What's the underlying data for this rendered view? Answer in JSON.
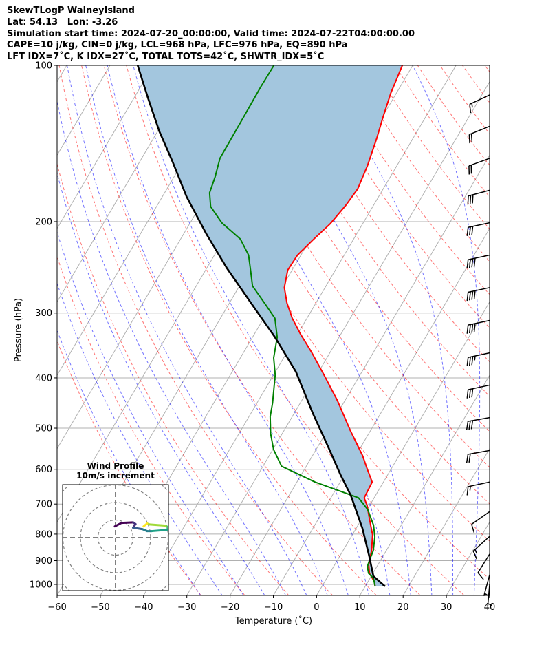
{
  "chart_data": {
    "type": "line",
    "title_lines": [
      "SkewTLogP WalneyIsland",
      "Lat: 54.13   Lon: -3.26",
      "Simulation start time: 2024-07-20_00:00:00, Valid time: 2024-07-22T04:00:00.00",
      "CAPE=10 j/kg, CIN=0 j/kg, LCL=968 hPa, LFC=976 hPa, EQ=890 hPa",
      "LFT IDX=7˚C, K IDX=27˚C, TOTAL TOTS=42˚C, SHWTR_IDX=5˚C"
    ],
    "xlabel": "Temperature (˚C)",
    "ylabel": "Pressure (hPa)",
    "xlim": [
      -60,
      40
    ],
    "ylim": [
      1050,
      100
    ],
    "xticks": [
      "−60",
      "−50",
      "−40",
      "−30",
      "−20",
      "−10",
      "0",
      "10",
      "20",
      "30",
      "40"
    ],
    "xtick_values": [
      -60,
      -50,
      -40,
      -30,
      -20,
      -10,
      0,
      10,
      20,
      30,
      40
    ],
    "yticks": [
      "100",
      "200",
      "300",
      "400",
      "500",
      "600",
      "700",
      "800",
      "900",
      "1000"
    ],
    "ytick_values": [
      100,
      200,
      300,
      400,
      500,
      600,
      700,
      800,
      900,
      1000
    ],
    "grid": true,
    "temperature": {
      "color": "#ff0000",
      "p": [
        100,
        113,
        126,
        138,
        156,
        173,
        186,
        202,
        217,
        232,
        248,
        268,
        287,
        307,
        329,
        357,
        393,
        442,
        505,
        565,
        597,
        635,
        681,
        706,
        746,
        803,
        861,
        915,
        952,
        988,
        1009
      ],
      "t": [
        -52.4,
        -51.3,
        -49.8,
        -48.4,
        -46.8,
        -45.9,
        -46.4,
        -47.5,
        -49.3,
        -50.8,
        -51.0,
        -49.4,
        -46.7,
        -43.4,
        -39.4,
        -34.3,
        -28.6,
        -21.8,
        -14.7,
        -8.4,
        -5.7,
        -2.6,
        -2.3,
        -0.5,
        1.7,
        4.7,
        6.6,
        7.8,
        9.2,
        11.5,
        12.3
      ]
    },
    "dewpoint": {
      "color": "#008000",
      "p": [
        100,
        110,
        122,
        136,
        151,
        164,
        176,
        187,
        201,
        216,
        232,
        250,
        266,
        287,
        307,
        334,
        366,
        395,
        447,
        475,
        512,
        550,
        592,
        635,
        681,
        717,
        769,
        810,
        861,
        896,
        924,
        952,
        973,
        1009
      ],
      "t": [
        -82.1,
        -82.2,
        -82.1,
        -82.0,
        -81.9,
        -80.5,
        -79.6,
        -77.5,
        -72.7,
        -66.2,
        -62.1,
        -59.3,
        -57.0,
        -51.9,
        -47.4,
        -44.3,
        -42.3,
        -39.6,
        -36.4,
        -35.1,
        -32.7,
        -29.8,
        -25.7,
        -15.8,
        -3.6,
        0.1,
        3.6,
        5.5,
        7.0,
        7.4,
        7.8,
        9.0,
        10.8,
        12.3
      ]
    },
    "parcel": {
      "color": "#000000",
      "p": [
        100,
        115,
        134,
        153,
        179,
        211,
        246,
        287,
        334,
        389,
        468,
        545,
        615,
        674,
        779,
        880,
        964,
        1009
      ],
      "t": [
        -113.6,
        -107,
        -99.6,
        -92.5,
        -84.4,
        -74.8,
        -65.3,
        -55.0,
        -44.8,
        -35.3,
        -25.7,
        -17.4,
        -10.9,
        -5.7,
        1.4,
        6.7,
        10.5,
        14.6
      ]
    },
    "cin_fill_color": "#a3c6de",
    "wind": {
      "p": [
        114,
        131,
        151,
        174,
        201,
        232,
        268,
        310,
        358,
        413,
        477,
        552,
        635,
        724,
        808,
        874,
        958,
        1000
      ],
      "speed_kt": [
        15,
        20,
        20,
        30,
        30,
        40,
        40,
        40,
        35,
        30,
        30,
        20,
        15,
        10,
        15,
        10,
        5,
        5
      ],
      "direction_deg": [
        245,
        248,
        250,
        255,
        258,
        258,
        258,
        258,
        258,
        258,
        260,
        260,
        258,
        235,
        228,
        212,
        195,
        185
      ]
    },
    "hodograph": {
      "title": "Wind Profile",
      "subtitle": "10m/s increment",
      "ring_increment": 10,
      "u": [
        -0.4,
        3.4,
        10,
        11.4,
        10,
        15.4,
        18,
        20.7,
        29.4,
        30,
        28.7,
        19.4,
        18,
        16
      ],
      "v": [
        6.4,
        8.4,
        8.7,
        7.7,
        5.7,
        4.8,
        3.7,
        3.7,
        4.4,
        5.7,
        6.8,
        7.5,
        8,
        6.4
      ]
    }
  }
}
